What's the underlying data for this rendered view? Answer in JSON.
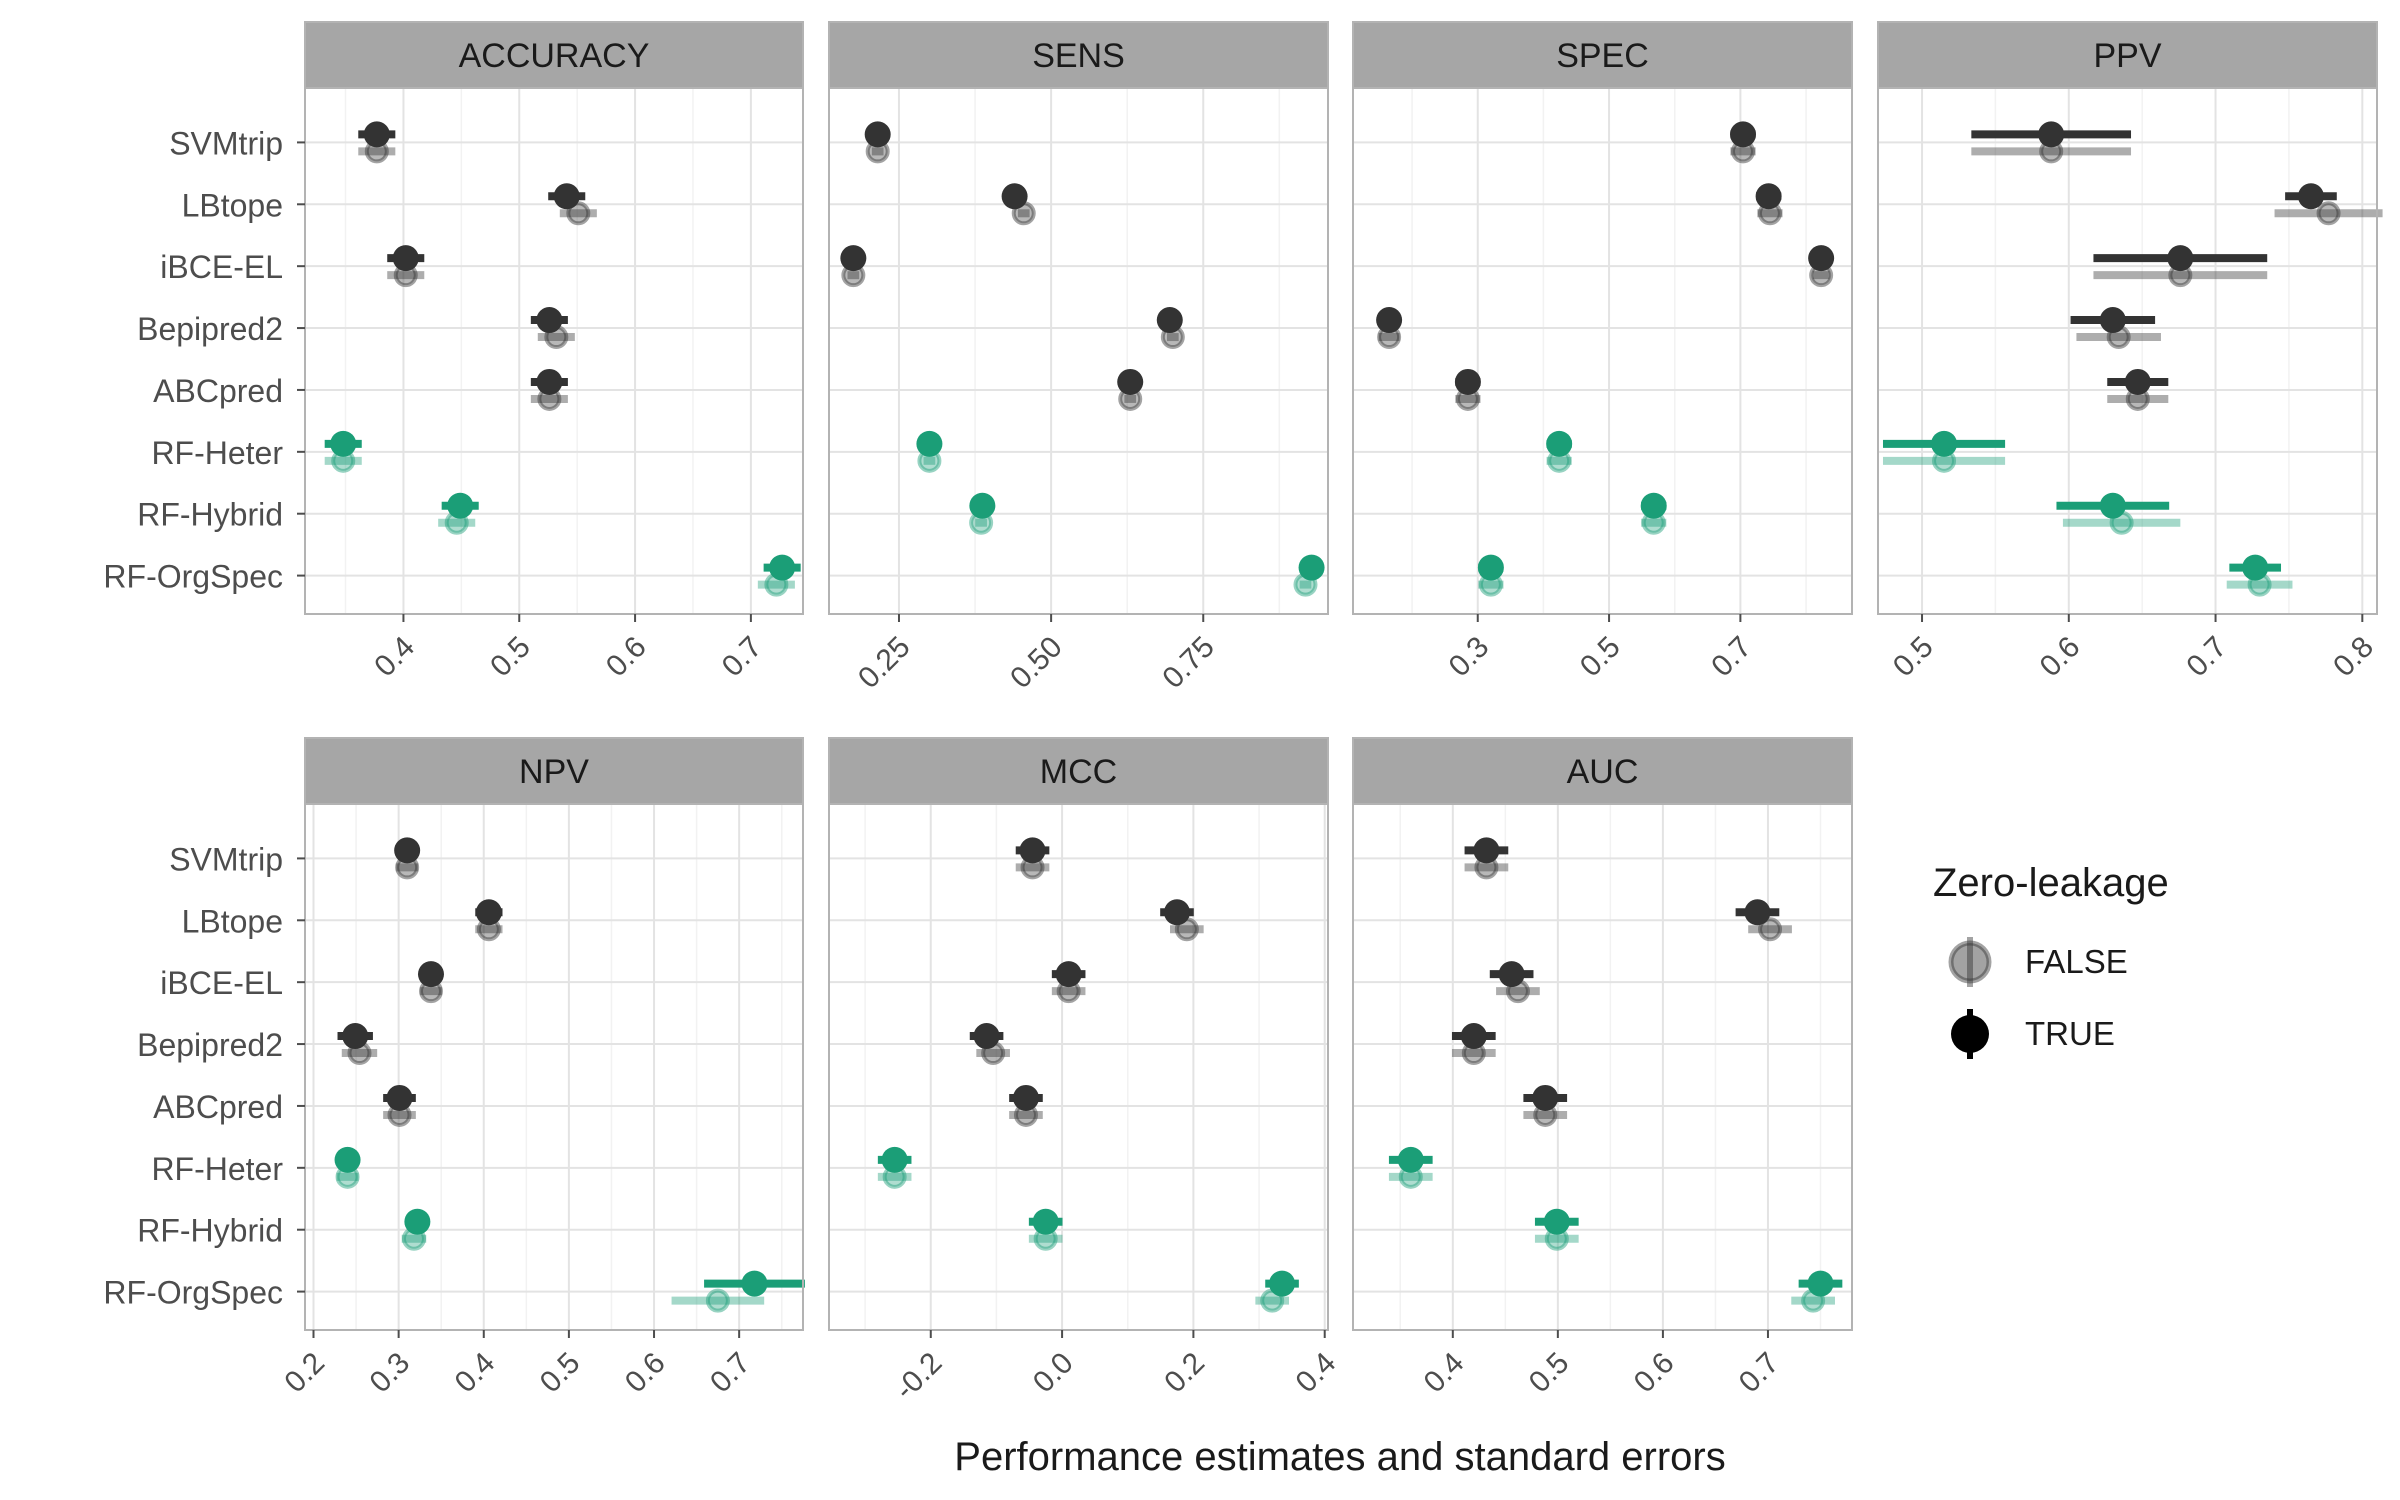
{
  "chart_data": {
    "type": "scatter",
    "xlabel": "Performance estimates and standard errors",
    "ylabel": "",
    "methods": [
      "SVMtrip",
      "LBtope",
      "iBCE-EL",
      "Bepipred2",
      "ABCpred",
      "RF-Heter",
      "RF-Hybrid",
      "RF-OrgSpec"
    ],
    "legend": {
      "title": "Zero-leakage",
      "position": "right",
      "entries": [
        {
          "label": "FALSE",
          "color": "#333333",
          "opacity": 0.45
        },
        {
          "label": "TRUE",
          "color": "#000000",
          "opacity": 1.0
        }
      ]
    },
    "colors": {
      "existing": "#333333",
      "rf": "#1b9e77",
      "strip_bg": "#a6a6a6",
      "grid": "#ebebeb",
      "panel_border": "#b3b3b3"
    },
    "grid": true,
    "panels": [
      {
        "name": "ACCURACY",
        "xlim": [
          0.315,
          0.745
        ],
        "ticks": [
          0.4,
          0.5,
          0.6,
          0.7
        ],
        "tick_labels": [
          "0.4",
          "0.5",
          "0.6",
          "0.7"
        ],
        "true_est": [
          0.377,
          0.541,
          0.402,
          0.526,
          0.526,
          0.348,
          0.449,
          0.727
        ],
        "true_se": [
          0.01,
          0.01,
          0.01,
          0.01,
          0.01,
          0.01,
          0.01,
          0.01
        ],
        "false_est": [
          0.377,
          0.551,
          0.402,
          0.532,
          0.526,
          0.348,
          0.446,
          0.722
        ],
        "false_se": [
          0.01,
          0.01,
          0.01,
          0.01,
          0.01,
          0.01,
          0.01,
          0.01
        ]
      },
      {
        "name": "SENS",
        "xlim": [
          0.135,
          0.955
        ],
        "ticks": [
          0.25,
          0.5,
          0.75
        ],
        "tick_labels": [
          "0.25",
          "0.50",
          "0.75"
        ],
        "true_est": [
          0.215,
          0.44,
          0.175,
          0.695,
          0.63,
          0.3,
          0.387,
          0.928
        ],
        "true_se": [
          0.006,
          0.006,
          0.006,
          0.006,
          0.006,
          0.006,
          0.006,
          0.006
        ],
        "false_est": [
          0.215,
          0.455,
          0.175,
          0.7,
          0.63,
          0.3,
          0.385,
          0.918
        ],
        "false_se": [
          0.006,
          0.006,
          0.006,
          0.006,
          0.006,
          0.006,
          0.006,
          0.006
        ]
      },
      {
        "name": "SPEC",
        "xlim": [
          0.11,
          0.87
        ],
        "ticks": [
          0.3,
          0.5,
          0.7
        ],
        "tick_labels": [
          "0.3",
          "0.5",
          "0.7"
        ],
        "true_est": [
          0.704,
          0.743,
          0.823,
          0.165,
          0.285,
          0.424,
          0.568,
          0.32
        ],
        "true_se": [
          0.012,
          0.012,
          0.008,
          0.01,
          0.012,
          0.012,
          0.012,
          0.012
        ],
        "false_est": [
          0.704,
          0.745,
          0.823,
          0.165,
          0.285,
          0.424,
          0.568,
          0.32
        ],
        "false_se": [
          0.012,
          0.012,
          0.008,
          0.01,
          0.012,
          0.012,
          0.012,
          0.012
        ]
      },
      {
        "name": "PPV",
        "xlim": [
          0.47,
          0.81
        ],
        "ticks": [
          0.5,
          0.6,
          0.7,
          0.8
        ],
        "tick_labels": [
          "0.5",
          "0.6",
          "0.7",
          "0.8"
        ],
        "true_est": [
          0.588,
          0.765,
          0.676,
          0.63,
          0.647,
          0.515,
          0.63,
          0.727
        ],
        "true_se": [
          0.034,
          0.011,
          0.037,
          0.018,
          0.013,
          0.026,
          0.024,
          0.011
        ],
        "false_est": [
          0.588,
          0.777,
          0.676,
          0.634,
          0.647,
          0.515,
          0.636,
          0.73
        ],
        "false_se": [
          0.034,
          0.023,
          0.037,
          0.018,
          0.013,
          0.026,
          0.025,
          0.014
        ]
      },
      {
        "name": "NPV",
        "xlim": [
          0.19,
          0.775
        ],
        "ticks": [
          0.2,
          0.3,
          0.4,
          0.5,
          0.6,
          0.7
        ],
        "tick_labels": [
          "0.2",
          "0.3",
          "0.4",
          "0.5",
          "0.6",
          "0.7"
        ],
        "true_est": [
          0.31,
          0.406,
          0.338,
          0.249,
          0.301,
          0.24,
          0.322,
          0.718
        ],
        "true_se": [
          0.008,
          0.01,
          0.008,
          0.013,
          0.012,
          0.008,
          0.009,
          0.037
        ],
        "false_est": [
          0.31,
          0.406,
          0.338,
          0.254,
          0.301,
          0.24,
          0.318,
          0.675
        ],
        "false_se": [
          0.008,
          0.01,
          0.008,
          0.013,
          0.012,
          0.008,
          0.009,
          0.034
        ]
      },
      {
        "name": "MCC",
        "xlim": [
          -0.355,
          0.405
        ],
        "ticks": [
          -0.2,
          0.0,
          0.2,
          0.4
        ],
        "tick_labels": [
          "-0.2",
          "0.0",
          "0.2",
          "0.4"
        ],
        "true_est": [
          -0.045,
          0.175,
          0.01,
          -0.115,
          -0.055,
          -0.255,
          -0.025,
          0.335
        ],
        "true_se": [
          0.016,
          0.016,
          0.016,
          0.016,
          0.016,
          0.016,
          0.016,
          0.016
        ],
        "false_est": [
          -0.045,
          0.19,
          0.01,
          -0.105,
          -0.055,
          -0.255,
          -0.025,
          0.32
        ],
        "false_se": [
          0.016,
          0.016,
          0.016,
          0.016,
          0.016,
          0.016,
          0.016,
          0.016
        ]
      },
      {
        "name": "AUC",
        "xlim": [
          0.305,
          0.78
        ],
        "ticks": [
          0.4,
          0.5,
          0.6,
          0.7
        ],
        "tick_labels": [
          "0.4",
          "0.5",
          "0.6",
          "0.7"
        ],
        "true_est": [
          0.432,
          0.69,
          0.456,
          0.42,
          0.488,
          0.36,
          0.499,
          0.75
        ],
        "true_se": [
          0.013,
          0.013,
          0.013,
          0.013,
          0.013,
          0.013,
          0.013,
          0.013
        ],
        "false_est": [
          0.432,
          0.702,
          0.462,
          0.42,
          0.488,
          0.36,
          0.499,
          0.743
        ],
        "false_se": [
          0.013,
          0.013,
          0.013,
          0.013,
          0.013,
          0.013,
          0.013,
          0.013
        ]
      }
    ]
  }
}
